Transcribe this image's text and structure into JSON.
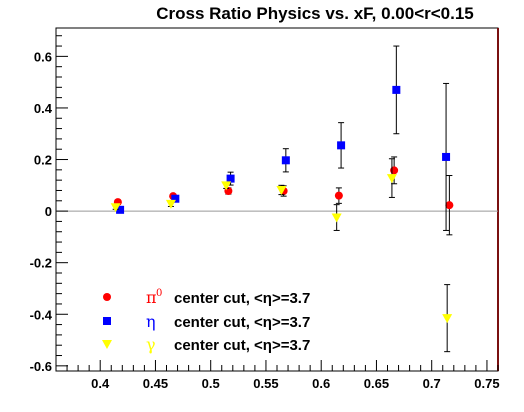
{
  "chart_data": {
    "type": "scatter",
    "title": "Cross Ratio Physics vs. xF, 0.00<r<0.15",
    "xlabel": "",
    "ylabel": "",
    "xlim": [
      0.36,
      0.76
    ],
    "ylim": [
      -0.62,
      0.71
    ],
    "x_ticks": [
      "0.4",
      "0.45",
      "0.5",
      "0.55",
      "0.6",
      "0.65",
      "0.7",
      "0.75"
    ],
    "y_ticks": [
      "-0.6",
      "-0.4",
      "-0.2",
      "0",
      "0.2",
      "0.4",
      "0.6"
    ],
    "zero_line": true,
    "grid": false,
    "legend_position": "bottom-left",
    "series": [
      {
        "symbol": "π",
        "superscript": "0",
        "label": "center cut, <η>=3.7",
        "marker": "circle",
        "color": "#ff0000",
        "points": [
          {
            "x": 0.416,
            "y": 0.035,
            "err": 0.008
          },
          {
            "x": 0.466,
            "y": 0.058,
            "err": 0.008
          },
          {
            "x": 0.516,
            "y": 0.078,
            "err": 0.012
          },
          {
            "x": 0.566,
            "y": 0.078,
            "err": 0.02
          },
          {
            "x": 0.616,
            "y": 0.06,
            "err": 0.03
          },
          {
            "x": 0.666,
            "y": 0.158,
            "err": 0.052
          },
          {
            "x": 0.716,
            "y": 0.023,
            "err": 0.115
          }
        ]
      },
      {
        "symbol": "η",
        "superscript": "",
        "label": "center cut, <η>=3.7",
        "marker": "square",
        "color": "#0000ff",
        "points": [
          {
            "x": 0.418,
            "y": 0.005,
            "err": 0.01
          },
          {
            "x": 0.468,
            "y": 0.048,
            "err": 0.012
          },
          {
            "x": 0.518,
            "y": 0.126,
            "err": 0.025
          },
          {
            "x": 0.568,
            "y": 0.197,
            "err": 0.045
          },
          {
            "x": 0.618,
            "y": 0.255,
            "err": 0.088
          },
          {
            "x": 0.668,
            "y": 0.47,
            "err": 0.17
          },
          {
            "x": 0.713,
            "y": 0.21,
            "err": 0.285
          }
        ]
      },
      {
        "symbol": "γ",
        "superscript": "",
        "label": "center cut, <η>=3.7",
        "marker": "triangle-down",
        "color": "#ffff00",
        "points": [
          {
            "x": 0.414,
            "y": 0.015,
            "err": 0.008
          },
          {
            "x": 0.464,
            "y": 0.028,
            "err": 0.01
          },
          {
            "x": 0.514,
            "y": 0.1,
            "err": 0.012
          },
          {
            "x": 0.564,
            "y": 0.082,
            "err": 0.018
          },
          {
            "x": 0.614,
            "y": -0.025,
            "err": 0.05
          },
          {
            "x": 0.664,
            "y": 0.128,
            "err": 0.075
          },
          {
            "x": 0.714,
            "y": -0.415,
            "err": 0.13
          }
        ]
      }
    ]
  }
}
